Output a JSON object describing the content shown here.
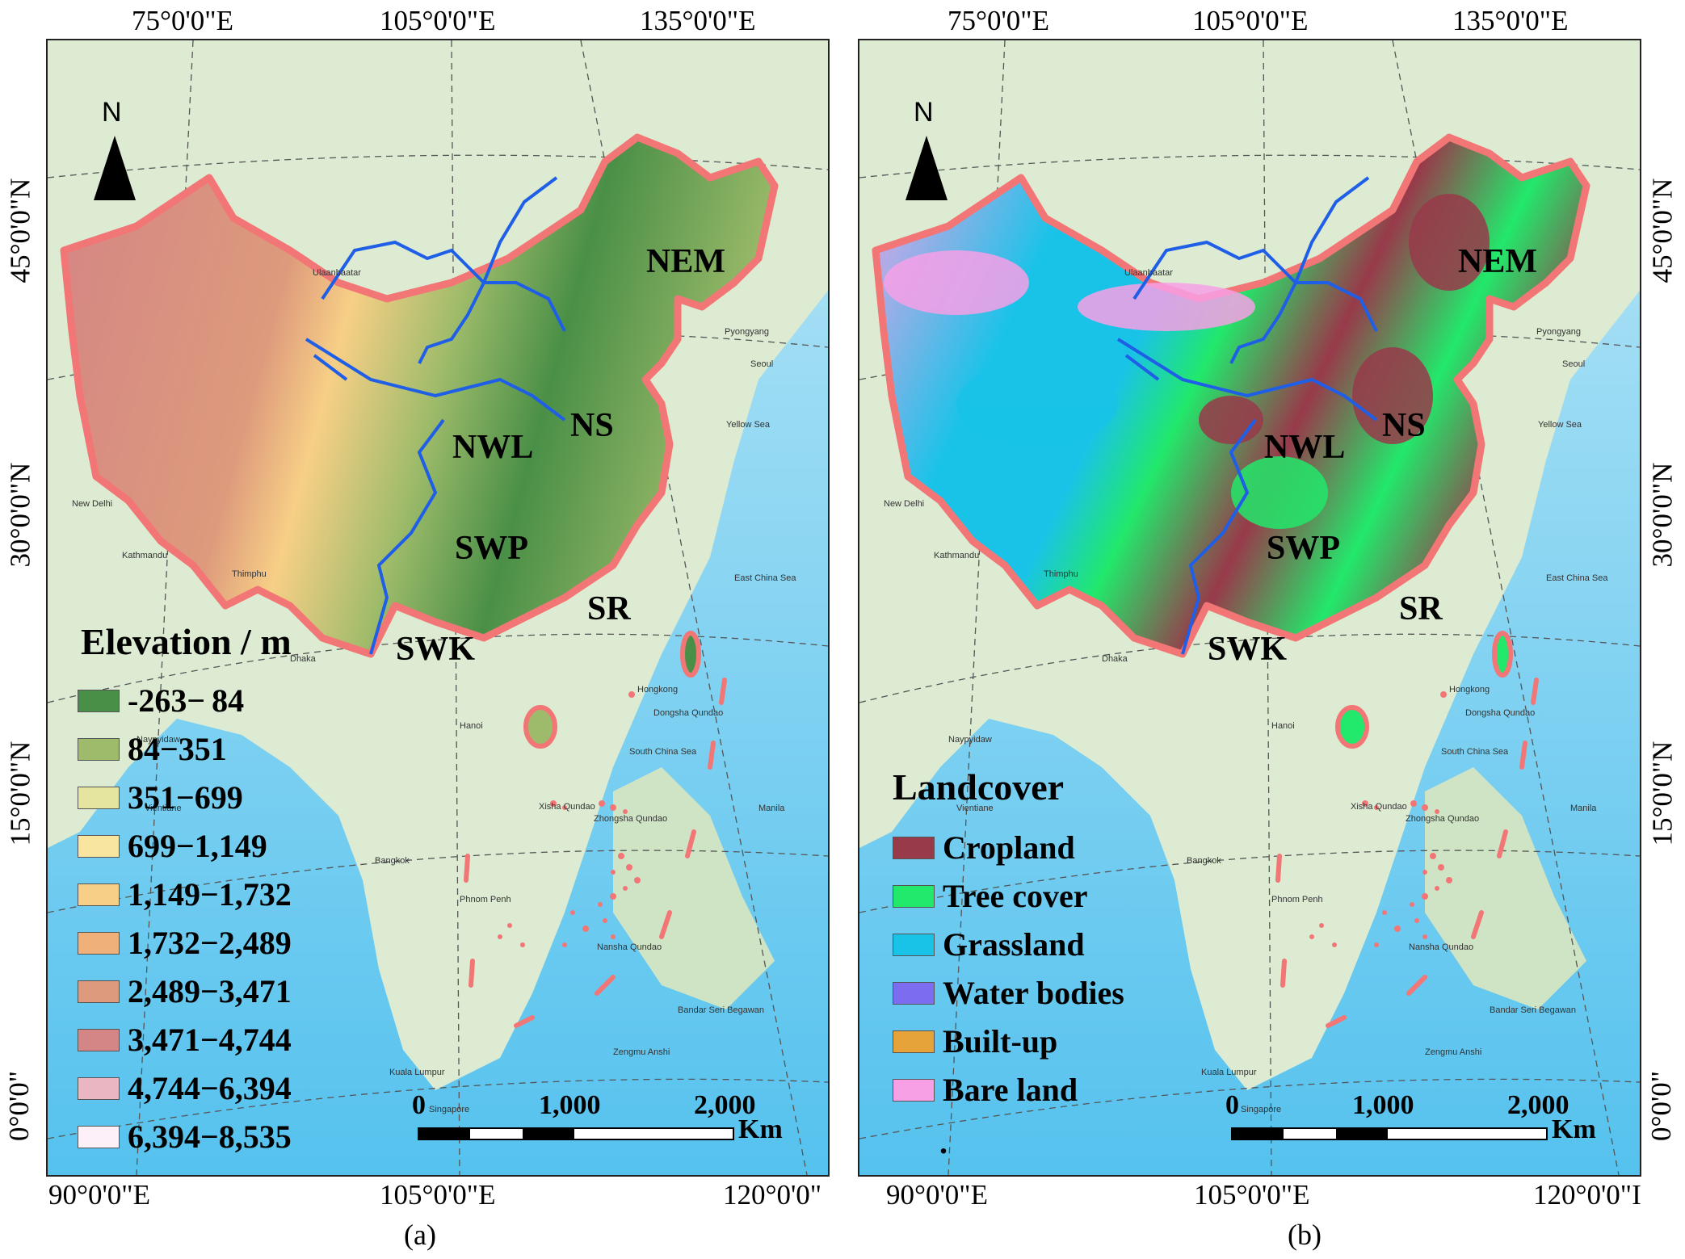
{
  "panels": [
    {
      "id": "a",
      "caption": "(a)",
      "top_lon": [
        "75°0'0\"E",
        "105°0'0\"E",
        "135°0'0\"E"
      ],
      "bottom_lon": [
        "90°0'0\"E",
        "105°0'0\"E",
        "120°0'0\""
      ],
      "left_lat": [
        "45°0'0\"N",
        "30°0'0\"N",
        "15°0'0\"N",
        "0°0'0\""
      ],
      "north_label": "N",
      "regions": [
        "NEM",
        "NS",
        "NWL",
        "SWP",
        "SR",
        "SWK"
      ],
      "legend": {
        "title": "Elevation / m",
        "items": [
          {
            "label": "-263− 84",
            "color": "#4a8f47"
          },
          {
            "label": "84−351",
            "color": "#9dbb6a"
          },
          {
            "label": "351−699",
            "color": "#e5e5a0"
          },
          {
            "label": "699−1,149",
            "color": "#f8e6a0"
          },
          {
            "label": "1,149−1,732",
            "color": "#f7cf86"
          },
          {
            "label": "1,732−2,489",
            "color": "#efb07a"
          },
          {
            "label": "2,489−3,471",
            "color": "#dd9a7c"
          },
          {
            "label": "3,471−4,744",
            "color": "#d48585"
          },
          {
            "label": "4,744−6,394",
            "color": "#eab6c1"
          },
          {
            "label": "6,394−8,535",
            "color": "#fdf0f8"
          }
        ]
      },
      "scale": {
        "ticks": [
          "0",
          "1,000",
          "2,000"
        ],
        "unit": "Km"
      }
    },
    {
      "id": "b",
      "caption": "(b)",
      "top_lon": [
        "75°0'0\"E",
        "105°0'0\"E",
        "135°0'0\"E"
      ],
      "bottom_lon": [
        "90°0'0\"E",
        "105°0'0\"E",
        "120°0'0\"I"
      ],
      "right_lat": [
        "45°0'0\"N",
        "30°0'0\"N",
        "15°0'0\"N",
        "0°0'0\""
      ],
      "north_label": "N",
      "regions": [
        "NEM",
        "NS",
        "NWL",
        "SWP",
        "SR",
        "SWK"
      ],
      "legend": {
        "title": "Landcover",
        "items": [
          {
            "label": "Cropland",
            "color": "#983a4a"
          },
          {
            "label": "Tree cover",
            "color": "#22e86b"
          },
          {
            "label": "Grassland",
            "color": "#19c3e8"
          },
          {
            "label": "Water bodies",
            "color": "#7c6cf0"
          },
          {
            "label": "Built-up",
            "color": "#e5a33a"
          },
          {
            "label": "Bare land",
            "color": "#f7a0e6"
          }
        ],
        "footnote": "."
      },
      "scale": {
        "ticks": [
          "0",
          "1,000",
          "2,000"
        ],
        "unit": "Km"
      }
    }
  ],
  "places": [
    "Ulaanbaatar",
    "Pyongyang",
    "Seoul",
    "Yellow Sea",
    "New Delhi",
    "Kathmandu",
    "Thimphu",
    "Dhaka",
    "East China Sea",
    "Hongkong",
    "Dongsha Qundao",
    "Naypyidaw",
    "Hanoi",
    "South China Sea",
    "Vientiane",
    "Xisha Qundao",
    "Zhongsha Qundao",
    "Manila",
    "Bangkok",
    "Phnom Penh",
    "Nansha Qundao",
    "Bandar Seri Begawan",
    "Zengmu Anshi",
    "Kuala Lumpur",
    "Singapore"
  ],
  "colors": {
    "border": "#f27676",
    "region_line": "#1f5ee6",
    "sea": "#8fd7f2",
    "deep_sea": "#5ec7ee",
    "land": "#dcebd2"
  }
}
